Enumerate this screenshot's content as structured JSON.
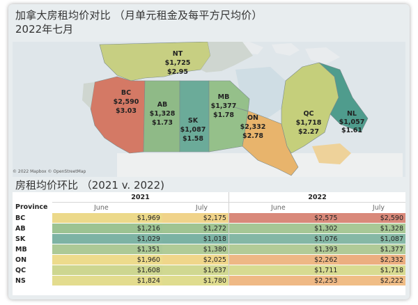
{
  "header": {
    "title": "加拿大房租均价对比 （月单元租金及每平方尺均价）",
    "subtitle": "2022年七月"
  },
  "map": {
    "attribution": "© 2022 Mapbox © OpenStreetMap",
    "regions": [
      {
        "code": "NT",
        "rent": "$1,725",
        "per_sqft": "$2.95",
        "color": "#c7cf82"
      },
      {
        "code": "BC",
        "rent": "$2,590",
        "per_sqft": "$3.03",
        "color": "#d47965"
      },
      {
        "code": "AB",
        "rent": "$1,328",
        "per_sqft": "$1.73",
        "color": "#8fba87"
      },
      {
        "code": "SK",
        "rent": "$1,087",
        "per_sqft": "$1.58",
        "color": "#6bab99"
      },
      {
        "code": "MB",
        "rent": "$1,377",
        "per_sqft": "$1.78",
        "color": "#95c08a"
      },
      {
        "code": "ON",
        "rent": "$2,332",
        "per_sqft": "$2.78",
        "color": "#e8b46c"
      },
      {
        "code": "QC",
        "rent": "$1,718",
        "per_sqft": "$2.27",
        "color": "#c5cf7b"
      },
      {
        "code": "NL",
        "rent": "$1,057",
        "per_sqft": "$1.61",
        "color": "#4f9c8d"
      }
    ]
  },
  "table": {
    "section_title": "房租均价环比 （2021 v. 2022)",
    "row_header": "Province",
    "years": [
      "2021",
      "2022"
    ],
    "months": [
      "June",
      "July",
      "June",
      "July"
    ],
    "rows": [
      {
        "province": "BC",
        "values": [
          "$1,969",
          "$2,175",
          "$2,575",
          "$2,590"
        ],
        "colors": [
          "#ecd98a",
          "#f0d38a",
          "#d9897a",
          "#d9897a"
        ]
      },
      {
        "province": "AB",
        "values": [
          "$1,216",
          "$1,272",
          "$1,302",
          "$1,328"
        ],
        "colors": [
          "#9cc392",
          "#a0c492",
          "#a6c795",
          "#a8c896"
        ]
      },
      {
        "province": "SK",
        "values": [
          "$1,029",
          "$1,018",
          "$1,076",
          "$1,087"
        ],
        "colors": [
          "#7db3a4",
          "#7bb2a3",
          "#84b7a5",
          "#86b8a5"
        ]
      },
      {
        "province": "MB",
        "values": [
          "$1,351",
          "$1,380",
          "$1,393",
          "$1,377"
        ],
        "colors": [
          "#acc996",
          "#b0cb97",
          "#b2cb97",
          "#b0ca97"
        ]
      },
      {
        "province": "ON",
        "values": [
          "$1,960",
          "$2,025",
          "$2,262",
          "$2,332"
        ],
        "colors": [
          "#eddb8c",
          "#f0d68a",
          "#eeb785",
          "#ecae80"
        ]
      },
      {
        "province": "QC",
        "values": [
          "$1,608",
          "$1,637",
          "$1,711",
          "$1,718"
        ],
        "colors": [
          "#cdd690",
          "#d0d891",
          "#d7db91",
          "#d8db91"
        ]
      },
      {
        "province": "NS",
        "values": [
          "$1,824",
          "$1,780",
          "$2,253",
          "$2,222"
        ],
        "colors": [
          "#e3dc8e",
          "#dfdc8e",
          "#efb985",
          "#f0bd86"
        ]
      }
    ]
  }
}
